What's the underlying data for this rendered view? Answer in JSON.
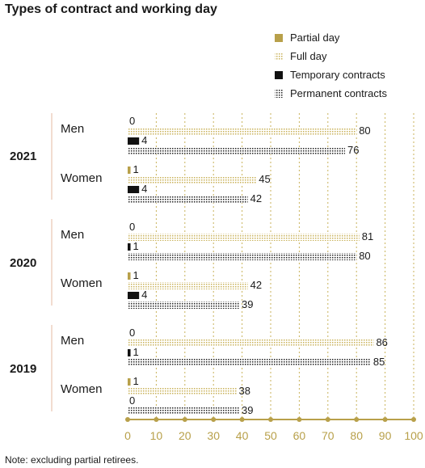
{
  "chart_data": {
    "type": "bar",
    "orientation": "horizontal",
    "title": "Types of contract and working day",
    "note": "Note: excluding partial retirees.",
    "series": [
      {
        "name": "Partial day",
        "color": "#b8a04a",
        "pattern": "solid"
      },
      {
        "name": "Full day",
        "color": "#c9b25a",
        "pattern": "dotted"
      },
      {
        "name": "Temporary contracts",
        "color": "#111111",
        "pattern": "solid"
      },
      {
        "name": "Permanent contracts",
        "color": "#222222",
        "pattern": "dotted"
      }
    ],
    "years": [
      {
        "year": "2021",
        "groups": [
          {
            "label": "Men",
            "values": [
              0,
              80,
              4,
              76
            ]
          },
          {
            "label": "Women",
            "values": [
              1,
              45,
              4,
              42
            ]
          }
        ]
      },
      {
        "year": "2020",
        "groups": [
          {
            "label": "Men",
            "values": [
              0,
              81,
              1,
              80
            ]
          },
          {
            "label": "Women",
            "values": [
              1,
              42,
              4,
              39
            ]
          }
        ]
      },
      {
        "year": "2019",
        "groups": [
          {
            "label": "Men",
            "values": [
              0,
              86,
              1,
              85
            ]
          },
          {
            "label": "Women",
            "values": [
              1,
              38,
              0,
              39
            ]
          }
        ]
      }
    ],
    "xlim": [
      0,
      100
    ],
    "xticks": [
      0,
      10,
      20,
      30,
      40,
      50,
      60,
      70,
      80,
      90,
      100
    ],
    "grid": true,
    "legend_position": "top-right"
  }
}
